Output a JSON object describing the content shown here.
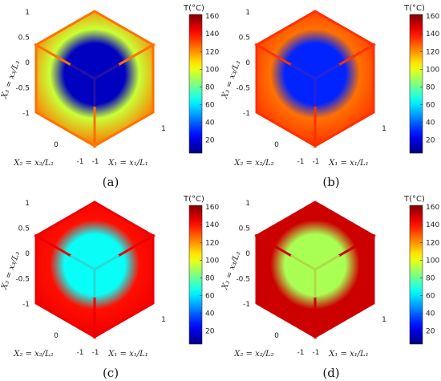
{
  "chart_data": [
    {
      "panel": "(a)",
      "type": "heatmap",
      "description_values_C": {
        "outer_surface": 95,
        "edge_frames": 125,
        "inner_cube": 15
      },
      "axis_labels": {
        "x1": "X₁ = x₁/L₁",
        "x2": "X₂ = x₂/L₂",
        "x3": "X₃ = x₃/L₃"
      },
      "ticks": {
        "x1": [
          "-1",
          "1"
        ],
        "x2": [
          "-1",
          "0"
        ],
        "x3": [
          "-1",
          "-0.5",
          "0",
          "0.5",
          "1"
        ]
      },
      "colorbar": {
        "title": "T(°C)",
        "ticks": [
          20,
          40,
          60,
          80,
          100,
          120,
          140,
          160
        ],
        "range": [
          5,
          162
        ]
      }
    },
    {
      "panel": "(b)",
      "type": "heatmap",
      "description_values_C": {
        "outer_surface": 125,
        "edge_frames": 135,
        "inner_cube": 30
      },
      "axis_labels": {
        "x1": "X₁ = x₁/L₁",
        "x2": "X₂ = x₂/L₂",
        "x3": "X₃ = x₃/L₃"
      },
      "ticks": {
        "x1": [
          "-1",
          "1"
        ],
        "x2": [
          "-1",
          "0"
        ],
        "x3": [
          "-1",
          "-0.5",
          "0",
          "0.5",
          "1"
        ]
      },
      "colorbar": {
        "title": "T(°C)",
        "ticks": [
          20,
          40,
          60,
          80,
          100,
          120,
          140,
          160
        ],
        "range": [
          5,
          162
        ]
      }
    },
    {
      "panel": "(c)",
      "type": "heatmap",
      "description_values_C": {
        "outer_surface": 140,
        "edge_frames": 145,
        "inner_cube": 65
      },
      "axis_labels": {
        "x1": "X₁ = x₁/L₁",
        "x2": "X₂ = x₂/L₂",
        "x3": "X₃ = x₃/L₃"
      },
      "ticks": {
        "x1": [
          "-1",
          "1"
        ],
        "x2": [
          "-1",
          "0"
        ],
        "x3": [
          "-1",
          "-0.5",
          "0",
          "0.5",
          "1"
        ]
      },
      "colorbar": {
        "title": "T(°C)",
        "ticks": [
          20,
          40,
          60,
          80,
          100,
          120,
          140,
          160
        ],
        "range": [
          5,
          162
        ]
      }
    },
    {
      "panel": "(d)",
      "type": "heatmap",
      "description_values_C": {
        "outer_surface": 150,
        "edge_frames": 150,
        "inner_cube": 90
      },
      "axis_labels": {
        "x1": "X₁ = x₁/L₁",
        "x2": "X₂ = x₂/L₂",
        "x3": "X₃ = x₃/L₃"
      },
      "ticks": {
        "x1": [
          "-1",
          "1"
        ],
        "x2": [
          "-1",
          "0"
        ],
        "x3": [
          "-1",
          "-0.5",
          "0",
          "0.5",
          "1"
        ]
      },
      "colorbar": {
        "title": "T(°C)",
        "ticks": [
          20,
          40,
          60,
          80,
          100,
          120,
          140,
          160
        ],
        "range": [
          5,
          162
        ]
      }
    }
  ],
  "colormap": "jet"
}
